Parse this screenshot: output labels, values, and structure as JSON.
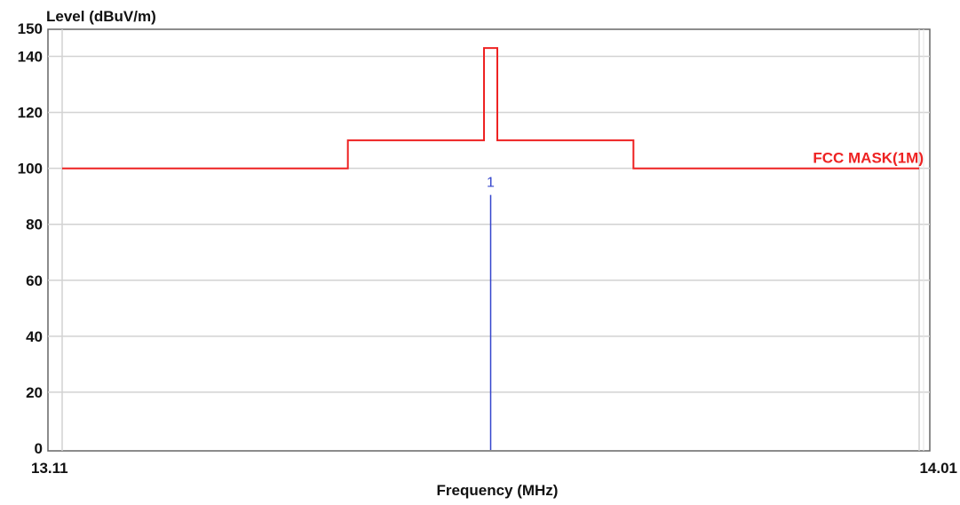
{
  "chart_data": {
    "type": "line",
    "ylabel": "Level (dBuV/m)",
    "xlabel": "Frequency (MHz)",
    "xlim": [
      13.11,
      14.01
    ],
    "ylim": [
      0,
      150
    ],
    "xtick_labels": [
      "13.11",
      "14.01"
    ],
    "yticks": [
      0,
      20,
      40,
      60,
      80,
      100,
      120,
      140,
      150
    ],
    "ytick_labels": [
      "0",
      "20",
      "40",
      "60",
      "80",
      "100",
      "120",
      "140",
      "150"
    ],
    "grid": true,
    "series": [
      {
        "name": "FCC MASK(1M)",
        "color": "#ee2222",
        "x": [
          13.11,
          13.41,
          13.41,
          13.553,
          13.553,
          13.567,
          13.567,
          13.71,
          13.71,
          14.01
        ],
        "y": [
          100,
          100,
          110,
          110,
          143,
          143,
          110,
          110,
          100,
          100
        ]
      }
    ],
    "markers": [
      {
        "label": "1",
        "x": 13.56,
        "y": 90.5,
        "color": "#3344cc"
      }
    ]
  }
}
